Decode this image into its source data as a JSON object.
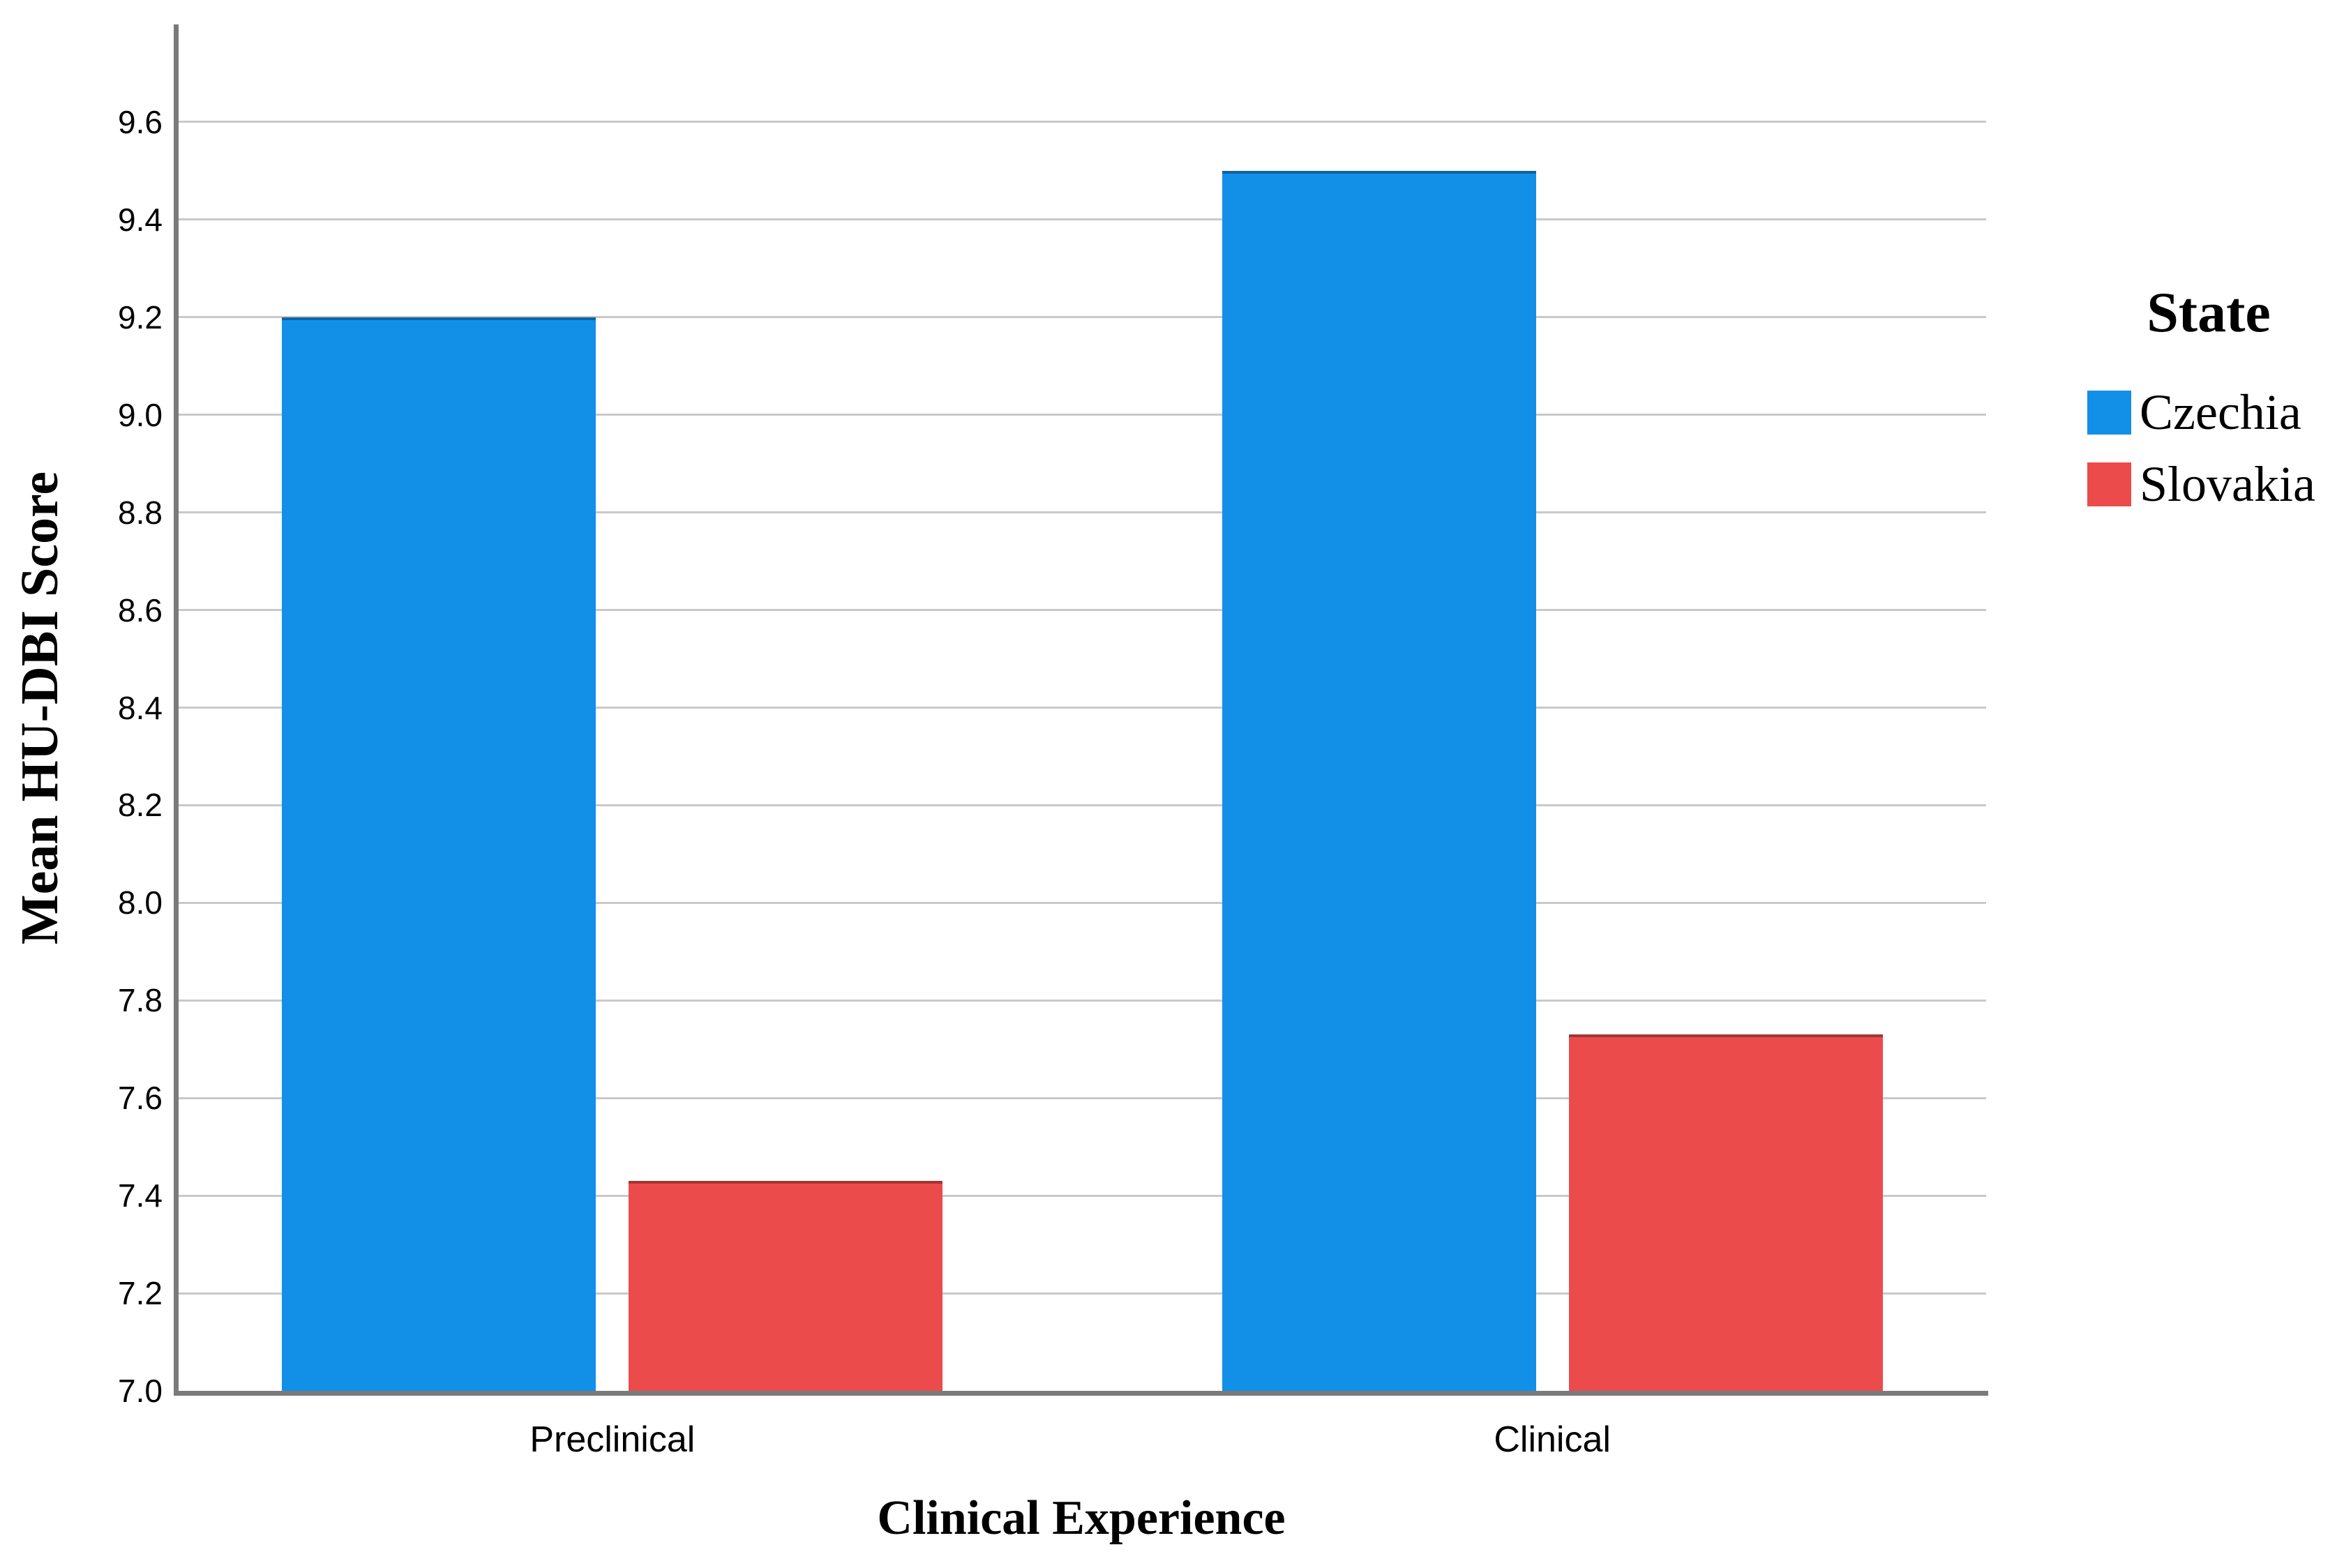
{
  "chart_data": {
    "type": "bar",
    "title": "",
    "categories": [
      "Preclinical",
      "Clinical"
    ],
    "series": [
      {
        "name": "Czechia",
        "color": "#1290E8",
        "values": [
          9.2,
          9.5
        ]
      },
      {
        "name": "Slovakia",
        "color": "#EC4B4C",
        "values": [
          7.43,
          7.73
        ]
      }
    ],
    "xlabel": "Clinical Experience",
    "ylabel": "Mean HU-DBI Score",
    "ylim": [
      7.0,
      9.8
    ],
    "yticks": [
      7.0,
      7.2,
      7.4,
      7.6,
      7.8,
      8.0,
      8.2,
      8.4,
      8.6,
      8.8,
      9.0,
      9.2,
      9.4,
      9.6
    ],
    "ytick_labels": [
      "7.0",
      "7.2",
      "7.4",
      "7.6",
      "7.8",
      "8.0",
      "8.2",
      "8.4",
      "8.6",
      "8.8",
      "9.0",
      "9.2",
      "9.4",
      "9.6"
    ],
    "grid": true,
    "gridline_color": "#C9C9C9",
    "axis_color": "#7A7A7A",
    "legend": {
      "title": "State",
      "position": "right",
      "entries": [
        "Czechia",
        "Slovakia"
      ]
    }
  }
}
